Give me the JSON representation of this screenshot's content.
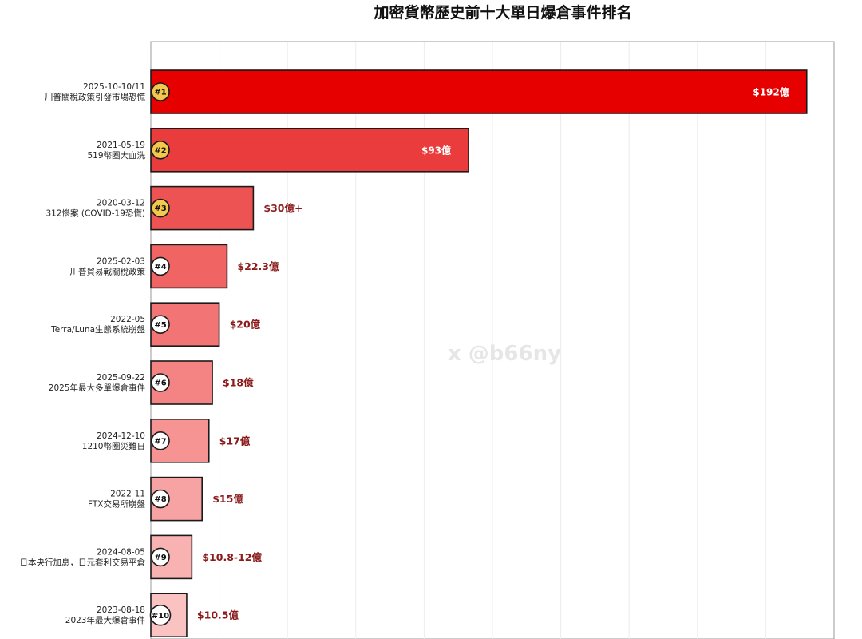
{
  "chart_data": {
    "type": "bar",
    "orientation": "horizontal",
    "title": "加密貨幣歷史前十大單日爆倉事件排名",
    "xlim": [
      0,
      200
    ],
    "grid": "vertical",
    "categories": [
      {
        "rank": "#1",
        "date": "2025-10-10/11",
        "desc": "川普關稅政策引發市場恐慌",
        "label": "$192億",
        "value": 192,
        "color": "#e60000",
        "badge": "#f2c94c"
      },
      {
        "rank": "#2",
        "date": "2021-05-19",
        "desc": "519幣圈大血洗",
        "label": "$93億",
        "value": 93,
        "color": "#ea3c3c",
        "badge": "#f2c94c"
      },
      {
        "rank": "#3",
        "date": "2020-03-12",
        "desc": "312慘案 (COVID-19恐慌)",
        "label": "$30億+",
        "value": 30,
        "color": "#ee5353",
        "badge": "#f2c94c"
      },
      {
        "rank": "#4",
        "date": "2025-02-03",
        "desc": "川普貿易戰關稅政策",
        "label": "$22.3億",
        "value": 22.3,
        "color": "#f06464",
        "badge": "#ffffff"
      },
      {
        "rank": "#5",
        "date": "2022-05",
        "desc": "Terra/Luna生態系統崩盤",
        "label": "$20億",
        "value": 20,
        "color": "#f27474",
        "badge": "#ffffff"
      },
      {
        "rank": "#6",
        "date": "2025-09-22",
        "desc": "2025年最大多單爆倉事件",
        "label": "$18億",
        "value": 18,
        "color": "#f48484",
        "badge": "#ffffff"
      },
      {
        "rank": "#7",
        "date": "2024-12-10",
        "desc": "1210幣圈災難日",
        "label": "$17億",
        "value": 17,
        "color": "#f69393",
        "badge": "#ffffff"
      },
      {
        "rank": "#8",
        "date": "2022-11",
        "desc": "FTX交易所崩盤",
        "label": "$15億",
        "value": 15,
        "color": "#f8a3a3",
        "badge": "#ffffff"
      },
      {
        "rank": "#9",
        "date": "2024-08-05",
        "desc": "日本央行加息，日元套利交易平倉",
        "label": "$10.8-12億",
        "value": 12,
        "color": "#f9b2b2",
        "badge": "#ffffff"
      },
      {
        "rank": "#10",
        "date": "2023-08-18",
        "desc": "2023年最大爆倉事件",
        "label": "$10.5億",
        "value": 10.5,
        "color": "#fbc2c2",
        "badge": "#ffffff"
      }
    ]
  },
  "watermark": "x @b66ny"
}
